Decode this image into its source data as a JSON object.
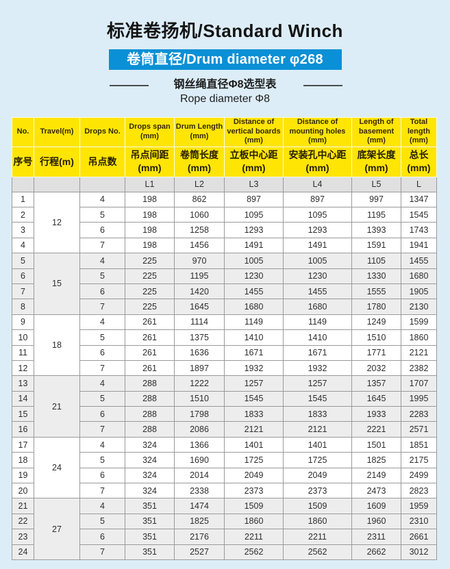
{
  "page": {
    "title": "标准卷扬机/Standard Winch",
    "badge": "卷筒直径/Drum diameter φ268",
    "subtitle_zh": "钢丝绳直径Φ8选型表",
    "subtitle_en": "Rope diameter Φ8"
  },
  "colors": {
    "page_bg": "#dcedf8",
    "accent_blue": "#0a90d6",
    "header_yellow": "#ffe504",
    "symbol_row_gray": "#e0e0e0",
    "alt_group_gray": "#ededed",
    "grid_line": "#9a9a9a"
  },
  "table": {
    "headers_en": [
      "No.",
      "Travel(m)",
      "Drops No.",
      "Drops span\n(mm)",
      "Drum Length\n(mm)",
      "Distance of\nvertical boards\n(mm)",
      "Distance of\nmounting holes\n(mm)",
      "Length of\nbasement\n(mm)",
      "Total\nlength\n(mm)"
    ],
    "headers_zh": [
      "序号",
      "行程(m)",
      "吊点数",
      "吊点间距\n(mm)",
      "卷筒长度\n(mm)",
      "立板中心距\n(mm)",
      "安装孔中心距\n(mm)",
      "底架长度\n(mm)",
      "总长\n(mm)"
    ],
    "symbol_row": [
      "",
      "",
      "",
      "L1",
      "L2",
      "L3",
      "L4",
      "L5",
      "L"
    ],
    "groups": [
      {
        "travel": "12",
        "rows": [
          [
            "1",
            "4",
            "198",
            "862",
            "897",
            "897",
            "997",
            "1347"
          ],
          [
            "2",
            "5",
            "198",
            "1060",
            "1095",
            "1095",
            "1195",
            "1545"
          ],
          [
            "3",
            "6",
            "198",
            "1258",
            "1293",
            "1293",
            "1393",
            "1743"
          ],
          [
            "4",
            "7",
            "198",
            "1456",
            "1491",
            "1491",
            "1591",
            "1941"
          ]
        ]
      },
      {
        "travel": "15",
        "rows": [
          [
            "5",
            "4",
            "225",
            "970",
            "1005",
            "1005",
            "1105",
            "1455"
          ],
          [
            "6",
            "5",
            "225",
            "1195",
            "1230",
            "1230",
            "1330",
            "1680"
          ],
          [
            "7",
            "6",
            "225",
            "1420",
            "1455",
            "1455",
            "1555",
            "1905"
          ],
          [
            "8",
            "7",
            "225",
            "1645",
            "1680",
            "1680",
            "1780",
            "2130"
          ]
        ]
      },
      {
        "travel": "18",
        "rows": [
          [
            "9",
            "4",
            "261",
            "1114",
            "1149",
            "1149",
            "1249",
            "1599"
          ],
          [
            "10",
            "5",
            "261",
            "1375",
            "1410",
            "1410",
            "1510",
            "1860"
          ],
          [
            "11",
            "6",
            "261",
            "1636",
            "1671",
            "1671",
            "1771",
            "2121"
          ],
          [
            "12",
            "7",
            "261",
            "1897",
            "1932",
            "1932",
            "2032",
            "2382"
          ]
        ]
      },
      {
        "travel": "21",
        "rows": [
          [
            "13",
            "4",
            "288",
            "1222",
            "1257",
            "1257",
            "1357",
            "1707"
          ],
          [
            "14",
            "5",
            "288",
            "1510",
            "1545",
            "1545",
            "1645",
            "1995"
          ],
          [
            "15",
            "6",
            "288",
            "1798",
            "1833",
            "1833",
            "1933",
            "2283"
          ],
          [
            "16",
            "7",
            "288",
            "2086",
            "2121",
            "2121",
            "2221",
            "2571"
          ]
        ]
      },
      {
        "travel": "24",
        "rows": [
          [
            "17",
            "4",
            "324",
            "1366",
            "1401",
            "1401",
            "1501",
            "1851"
          ],
          [
            "18",
            "5",
            "324",
            "1690",
            "1725",
            "1725",
            "1825",
            "2175"
          ],
          [
            "19",
            "6",
            "324",
            "2014",
            "2049",
            "2049",
            "2149",
            "2499"
          ],
          [
            "20",
            "7",
            "324",
            "2338",
            "2373",
            "2373",
            "2473",
            "2823"
          ]
        ]
      },
      {
        "travel": "27",
        "rows": [
          [
            "21",
            "4",
            "351",
            "1474",
            "1509",
            "1509",
            "1609",
            "1959"
          ],
          [
            "22",
            "5",
            "351",
            "1825",
            "1860",
            "1860",
            "1960",
            "2310"
          ],
          [
            "23",
            "6",
            "351",
            "2176",
            "2211",
            "2211",
            "2311",
            "2661"
          ],
          [
            "24",
            "7",
            "351",
            "2527",
            "2562",
            "2562",
            "2662",
            "3012"
          ]
        ]
      }
    ]
  }
}
